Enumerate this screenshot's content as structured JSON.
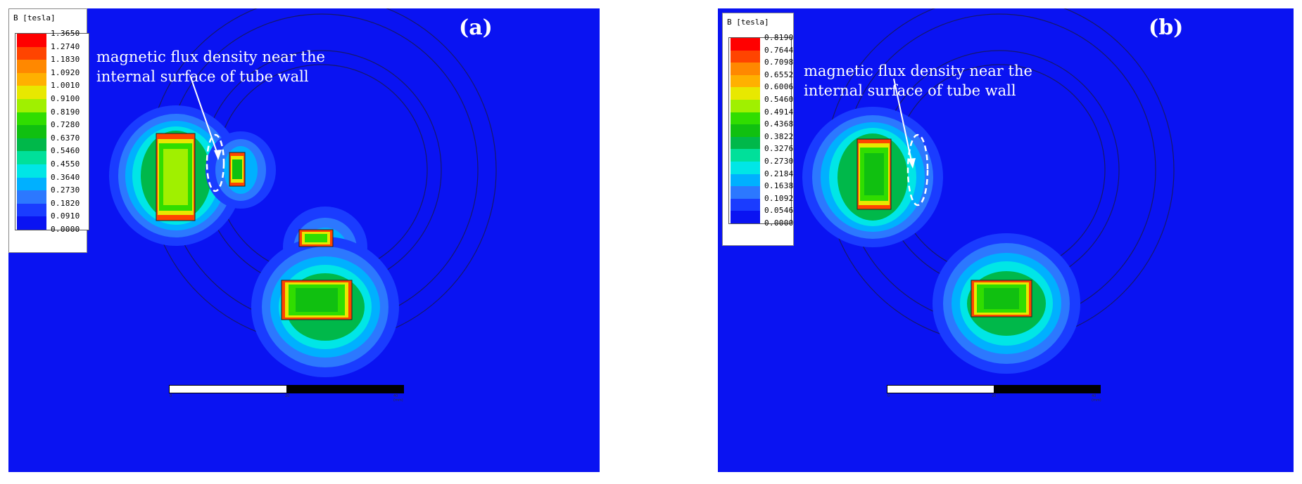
{
  "colors": {
    "background": "#0a13f2",
    "scale": [
      "#ff0000",
      "#ff4400",
      "#ff8800",
      "#ffb000",
      "#e8e800",
      "#a0f000",
      "#30dd00",
      "#10c010",
      "#00b84a",
      "#00e09a",
      "#00e6e6",
      "#00b0ff",
      "#2c78ff",
      "#1a3cff",
      "#0a13f2"
    ]
  },
  "panels": [
    {
      "id": "a",
      "label": "(a)",
      "legend_title": "B [tesla]",
      "legend_values": [
        "1.3650",
        "1.2740",
        "1.1830",
        "1.0920",
        "1.0010",
        "0.9100",
        "0.8190",
        "0.7280",
        "0.6370",
        "0.5460",
        "0.4550",
        "0.3640",
        "0.2730",
        "0.1820",
        "0.0910",
        "0.0000"
      ],
      "annotation": [
        "magnetic flux density near the",
        "internal surface of tube wall"
      ],
      "scale_ticks": [
        "0",
        "20",
        "40 (mm)"
      ]
    },
    {
      "id": "b",
      "label": "(b)",
      "legend_title": "B [tesla]",
      "legend_values": [
        "0.8190",
        "0.7644",
        "0.7098",
        "0.6552",
        "0.6006",
        "0.5460",
        "0.4914",
        "0.4368",
        "0.3822",
        "0.3276",
        "0.2730",
        "0.2184",
        "0.1638",
        "0.1092",
        "0.0546",
        "0.0000"
      ],
      "annotation": [
        "magnetic flux density near the",
        "internal surface of tube wall"
      ],
      "scale_ticks": [
        "0",
        "20",
        "40 (mm)"
      ]
    }
  ]
}
